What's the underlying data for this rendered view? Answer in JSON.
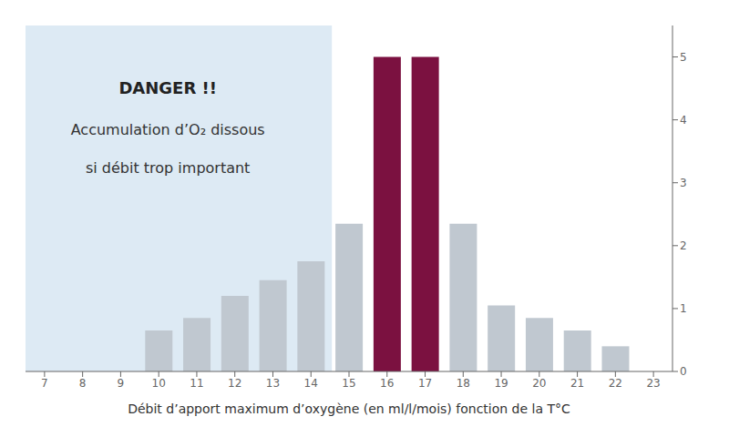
{
  "chart_data": {
    "type": "bar",
    "x": [
      7,
      8,
      9,
      10,
      11,
      12,
      13,
      14,
      15,
      16,
      17,
      18,
      19,
      20,
      21,
      22
    ],
    "values": [
      0.0,
      0.0,
      0.0,
      0.65,
      0.85,
      1.2,
      1.45,
      1.75,
      2.35,
      5.0,
      5.0,
      2.35,
      1.05,
      0.85,
      0.65,
      0.4
    ],
    "colors": [
      "#c8d8e8",
      "#c8d8e8",
      "#c8d8e8",
      "#c0c8d0",
      "#c0c8d0",
      "#c0c8d0",
      "#c0c8d0",
      "#c0c8d0",
      "#c0c8d0",
      "#7b1140",
      "#7b1140",
      "#c0c8d0",
      "#c0c8d0",
      "#c0c8d0",
      "#c0c8d0",
      "#c0c8d0"
    ],
    "xlim": [
      6.5,
      23.5
    ],
    "xticks": [
      7,
      8,
      9,
      10,
      11,
      12,
      13,
      14,
      15,
      16,
      17,
      18,
      19,
      20,
      21,
      22,
      23
    ],
    "ylim": [
      0,
      5.5
    ],
    "yticks": [
      0,
      1,
      2,
      3,
      4,
      5
    ],
    "xlabel": "Débit d’apport  maximum  d’oxygène  (en ml/l/mois)   fonction de la T°C",
    "band": {
      "xlim": [
        6.5,
        14.55
      ],
      "color": "#ddeaf4"
    },
    "annotation": {
      "title": "DANGER !!",
      "lines": [
        "Accumulation d’O₂ dissous",
        "si débit trop important"
      ]
    },
    "grid": false
  }
}
